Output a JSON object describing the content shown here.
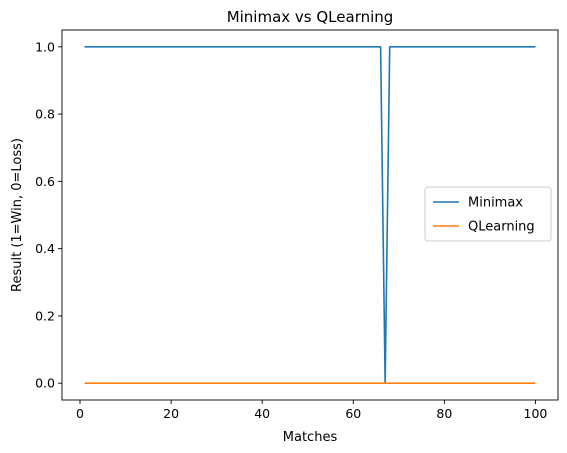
{
  "chart_data": {
    "type": "line",
    "title": "Minimax vs QLearning",
    "xlabel": "Matches",
    "ylabel": "Result (1=Win, 0=Loss)",
    "xlim": [
      -3.95,
      104.95
    ],
    "ylim": [
      -0.05,
      1.05
    ],
    "xticks": [
      0,
      20,
      40,
      60,
      80,
      100
    ],
    "yticks": [
      0.0,
      0.2,
      0.4,
      0.6,
      0.8,
      1.0
    ],
    "xtick_labels": [
      "0",
      "20",
      "40",
      "60",
      "80",
      "100"
    ],
    "ytick_labels": [
      "0.0",
      "0.2",
      "0.4",
      "0.6",
      "0.8",
      "1.0"
    ],
    "grid": false,
    "legend": {
      "placement": "center-right"
    },
    "series": [
      {
        "name": "Minimax",
        "color": "#1f77b4",
        "x": [
          1,
          66,
          67,
          68,
          100
        ],
        "y": [
          1,
          1,
          0,
          1,
          1
        ]
      },
      {
        "name": "QLearning",
        "color": "#ff7f0e",
        "x": [
          1,
          100
        ],
        "y": [
          0,
          0
        ]
      }
    ]
  }
}
